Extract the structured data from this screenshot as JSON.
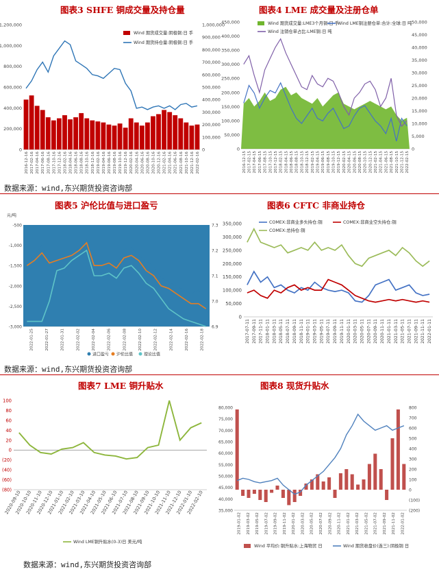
{
  "sources": [
    "数据来源：wind,东兴期货投资咨询部",
    "数据来源：wind,东兴期货投资咨询部",
    "数据来源：wind,东兴期货投资咨询部"
  ],
  "chart_data": [
    {
      "id": "fig3",
      "title": "图表3 SHFE 铜成交量及持仓量",
      "type": "bar",
      "subtype": "bar+line",
      "left_axis": {
        "min": 0,
        "max": 1200000,
        "step": 200000
      },
      "right_axis": {
        "min": 0,
        "max": 1000000,
        "step": 100000
      },
      "x_ticks": [
        "2016-12-16",
        "2017-02-16",
        "2017-04-16",
        "2017-06-16",
        "2017-08-16",
        "2017-10-16",
        "2017-12-16",
        "2018-02-16",
        "2018-04-16",
        "2018-06-16",
        "2018-08-16",
        "2018-10-16",
        "2018-12-16",
        "2019-02-16",
        "2019-04-16",
        "2019-06-16",
        "2019-08-16",
        "2019-10-16",
        "2019-12-16",
        "2020-02-16",
        "2020-04-16",
        "2020-06-16",
        "2020-08-16",
        "2020-10-16",
        "2020-12-16",
        "2021-02-16",
        "2021-04-16",
        "2021-06-16",
        "2021-08-16",
        "2021-10-16",
        "2021-12-16",
        "2022-02-16"
      ],
      "series": [
        {
          "name": "Wind 期货成交量:阴极铜:日 手",
          "kind": "bar",
          "axis": "left",
          "color": "#c00000",
          "values": [
            480000,
            520000,
            420000,
            380000,
            310000,
            280000,
            300000,
            330000,
            290000,
            310000,
            350000,
            300000,
            280000,
            270000,
            260000,
            240000,
            230000,
            250000,
            210000,
            300000,
            260000,
            230000,
            260000,
            320000,
            340000,
            380000,
            360000,
            330000,
            300000,
            260000,
            230000,
            240000
          ]
        },
        {
          "name": "Wind 期货持仓量:阴极铜:日 手",
          "kind": "line",
          "axis": "right",
          "color": "#2e75b6",
          "values": [
            490000,
            550000,
            640000,
            700000,
            620000,
            750000,
            810000,
            870000,
            840000,
            710000,
            680000,
            650000,
            600000,
            590000,
            570000,
            610000,
            650000,
            640000,
            530000,
            470000,
            330000,
            340000,
            320000,
            340000,
            350000,
            330000,
            350000,
            320000,
            360000,
            370000,
            340000,
            350000
          ]
        }
      ]
    },
    {
      "id": "fig4",
      "title": "图表4 LME 成交量及注册仓单",
      "type": "area",
      "subtype": "area+line",
      "left_axis": {
        "min": 0,
        "max": 450000,
        "step": 50000
      },
      "right_axis": {
        "min": 0,
        "max": 50000,
        "step": 5000
      },
      "x_ticks": [
        "2016-12-15",
        "2017-02-15",
        "2017-04-15",
        "2017-06-15",
        "2017-08-15",
        "2017-10-15",
        "2017-12-15",
        "2018-02-15",
        "2018-04-15",
        "2018-06-15",
        "2018-08-15",
        "2018-10-15",
        "2018-12-15",
        "2019-02-15",
        "2019-04-15",
        "2019-06-15",
        "2019-08-15",
        "2019-10-15",
        "2019-12-15",
        "2020-02-15",
        "2020-04-15",
        "2020-06-15",
        "2020-08-15",
        "2020-10-15",
        "2020-12-15",
        "2021-02-15",
        "2021-04-15",
        "2021-06-15",
        "2021-08-15",
        "2021-10-15",
        "2021-12-15",
        "2022-02-15"
      ],
      "series": [
        {
          "name": "Wind 期货成交量:LME3个月铜:日 手",
          "kind": "area",
          "axis": "left",
          "color": "#70b62e",
          "values": [
            160000,
            180000,
            150000,
            170000,
            200000,
            170000,
            180000,
            210000,
            220000,
            190000,
            200000,
            180000,
            170000,
            160000,
            180000,
            150000,
            170000,
            190000,
            200000,
            160000,
            150000,
            140000,
            150000,
            160000,
            170000,
            160000,
            150000,
            140000,
            150000,
            120000,
            100000,
            110000
          ]
        },
        {
          "name": "Wind LME铜注册仓单:合计:全球:日 吨",
          "kind": "line",
          "axis": "right",
          "color": "#4472c4",
          "values": [
            18000,
            25000,
            22000,
            16000,
            20000,
            23000,
            22000,
            26000,
            21000,
            16000,
            12000,
            10000,
            13000,
            16000,
            12000,
            11000,
            14000,
            16000,
            12000,
            8000,
            9000,
            13000,
            16000,
            17000,
            14000,
            11000,
            9000,
            6000,
            12000,
            3000,
            12000,
            9000
          ]
        },
        {
          "name": "Wind 注销仓单占比:LME铜:日 吨",
          "kind": "line",
          "axis": "left",
          "color": "#7f5fa8",
          "values": [
            300000,
            330000,
            260000,
            200000,
            280000,
            320000,
            360000,
            390000,
            340000,
            300000,
            260000,
            220000,
            210000,
            260000,
            230000,
            220000,
            250000,
            240000,
            200000,
            150000,
            120000,
            180000,
            200000,
            230000,
            240000,
            210000,
            150000,
            180000,
            250000,
            120000,
            80000,
            100000
          ]
        }
      ]
    },
    {
      "id": "fig5",
      "title": "图表5 沪伦比值与进口盈亏",
      "type": "area",
      "subtype": "area+lines",
      "left_axis": {
        "min": -3000,
        "max": -500,
        "step": 500
      },
      "right_axis": {
        "min": 6.9,
        "max": 7.3,
        "step": 0.1
      },
      "left_unit": "元/吨",
      "x_ticks": [
        "2022-01-25",
        "2022-01-27",
        "2022-01-31",
        "2022-02-02",
        "2022-02-04",
        "2022-02-06",
        "2022-02-08",
        "2022-02-10",
        "2022-02-12",
        "2022-02-14",
        "2022-02-16",
        "2022-02-18"
      ],
      "legend": [
        "进口盈亏",
        "沪伦比值",
        "理论比值"
      ],
      "series": [
        {
          "name": "进口盈亏",
          "kind": "area",
          "axis": "left",
          "color": "#2f7fb0",
          "values": [
            -1400,
            -1250,
            -1000,
            -1450,
            -1400,
            -1350,
            -1200,
            -1050,
            -850,
            -1500,
            -1450,
            -1400,
            -1500,
            -1100,
            -1050,
            -1250,
            -1400,
            -1500,
            -1800,
            -1900,
            -2000,
            -2100,
            -2200,
            -2100,
            -2300
          ]
        },
        {
          "name": "沪伦比值",
          "kind": "line",
          "axis": "right",
          "color": "#e67e22",
          "values": [
            7.14,
            7.16,
            7.19,
            7.15,
            7.16,
            7.17,
            7.18,
            7.2,
            7.23,
            7.14,
            7.14,
            7.15,
            7.13,
            7.17,
            7.18,
            7.16,
            7.12,
            7.1,
            7.06,
            7.05,
            7.03,
            7.01,
            6.99,
            6.99,
            6.97
          ]
        },
        {
          "name": "理论比值",
          "kind": "line",
          "axis": "right",
          "color": "#5fc4c8",
          "values": [
            6.92,
            6.92,
            6.92,
            7.0,
            7.12,
            7.13,
            7.16,
            7.18,
            7.2,
            7.1,
            7.1,
            7.11,
            7.09,
            7.13,
            7.14,
            7.11,
            7.07,
            7.05,
            7.01,
            6.97,
            6.95,
            6.93,
            6.92,
            6.91,
            6.9
          ]
        }
      ]
    },
    {
      "id": "fig6",
      "title": "图表6 CFTC 非商业持仓",
      "type": "line",
      "y_axis": {
        "min": 0,
        "max": 350000,
        "step": 50000
      },
      "x_ticks": [
        "2017-07-11",
        "2017-09-11",
        "2017-11-11",
        "2018-01-11",
        "2018-03-11",
        "2018-05-11",
        "2018-07-11",
        "2018-09-11",
        "2018-11-11",
        "2019-01-11",
        "2019-03-11",
        "2019-05-11",
        "2019-07-11",
        "2019-09-11",
        "2019-11-11",
        "2020-01-11",
        "2020-03-11",
        "2020-05-11",
        "2020-07-11",
        "2020-09-11",
        "2020-11-11",
        "2021-01-11",
        "2021-03-11",
        "2021-05-11",
        "2021-07-11",
        "2021-09-11",
        "2021-11-11",
        "2022-01-11"
      ],
      "series": [
        {
          "name": "COMEX:非商业多头持仓:铜",
          "color": "#4472c4",
          "values": [
            120000,
            170000,
            130000,
            150000,
            110000,
            120000,
            100000,
            90000,
            110000,
            100000,
            130000,
            110000,
            100000,
            95000,
            100000,
            90000,
            60000,
            55000,
            80000,
            120000,
            130000,
            140000,
            100000,
            110000,
            120000,
            90000,
            80000,
            85000
          ]
        },
        {
          "name": "COMEX:非商业空头持仓:铜",
          "color": "#c00000",
          "values": [
            90000,
            100000,
            80000,
            70000,
            100000,
            90000,
            110000,
            120000,
            100000,
            110000,
            100000,
            100000,
            140000,
            130000,
            120000,
            100000,
            80000,
            70000,
            60000,
            55000,
            60000,
            65000,
            60000,
            65000,
            60000,
            55000,
            60000,
            55000
          ]
        },
        {
          "name": "COMEX:总持仓:铜",
          "color": "#9bbb59",
          "values": [
            280000,
            330000,
            280000,
            270000,
            260000,
            270000,
            240000,
            250000,
            260000,
            250000,
            280000,
            250000,
            260000,
            250000,
            270000,
            230000,
            200000,
            190000,
            220000,
            230000,
            240000,
            250000,
            230000,
            260000,
            240000,
            210000,
            190000,
            210000
          ]
        }
      ]
    },
    {
      "id": "fig7",
      "title": "图表7 LME 铜升贴水",
      "type": "line",
      "y_axis": {
        "min": -80,
        "max": 100,
        "step": 20
      },
      "y_tick_labels": [
        "(80)",
        "(60)",
        "(40)",
        "(20)",
        "0",
        "20",
        "40",
        "60",
        "80",
        "100"
      ],
      "x_ticks": [
        "2020-09-10",
        "2020-10-10",
        "2020-11-10",
        "2020-12-10",
        "2021-01-10",
        "2021-02-10",
        "2021-03-10",
        "2021-04-10",
        "2021-05-10",
        "2021-06-10",
        "2021-07-10",
        "2021-08-10",
        "2021-09-10",
        "2021-10-10",
        "2021-11-10",
        "2021-12-10",
        "2022-01-10",
        "2022-02-10"
      ],
      "series": [
        {
          "name": "Wind LME铜升贴水(0-3)日 美元/吨",
          "color": "#8db63c",
          "values": [
            35,
            10,
            -5,
            -8,
            2,
            5,
            15,
            -5,
            -10,
            -12,
            -18,
            -15,
            5,
            10,
            100,
            20,
            45,
            55
          ]
        }
      ]
    },
    {
      "id": "fig8",
      "title": "图表8 现货升贴水",
      "type": "bar",
      "subtype": "bar+line",
      "left_axis": {
        "min": 35000,
        "max": 80000,
        "step": 5000
      },
      "right_axis": {
        "min": -200,
        "max": 800,
        "step": 100
      },
      "right_tick_labels": [
        "(200)",
        "(100)",
        "0",
        "100",
        "200",
        "300",
        "400",
        "500",
        "600",
        "700",
        "800"
      ],
      "x_ticks": [
        "2019-01-02",
        "2019-03-02",
        "2019-05-02",
        "2019-07-02",
        "2019-09-02",
        "2019-11-02",
        "2020-01-02",
        "2020-03-02",
        "2020-05-02",
        "2020-07-02",
        "2020-09-02",
        "2020-11-02",
        "2021-01-02",
        "2021-03-02",
        "2021-05-02",
        "2021-07-02",
        "2021-09-02",
        "2021-11-02",
        "2022-01-02"
      ],
      "series": [
        {
          "name": "Wind 平均价:铜升贴水:上海物贸 日",
          "kind": "bar",
          "axis": "right",
          "color": "#c0504d",
          "values": [
            780,
            -60,
            -80,
            -40,
            -100,
            -120,
            -30,
            40,
            -80,
            -150,
            -120,
            -60,
            60,
            100,
            150,
            80,
            120,
            -80,
            160,
            200,
            150,
            50,
            100,
            250,
            350,
            200,
            -100,
            500,
            780,
            250
          ]
        },
        {
          "name": "Wind 期货收盘价(连三):阴极铜 日",
          "kind": "line",
          "axis": "left",
          "color": "#4f81bd",
          "values": [
            48000,
            49000,
            48500,
            47500,
            47000,
            47500,
            48000,
            49000,
            46000,
            44000,
            42000,
            43000,
            46000,
            48000,
            50000,
            52000,
            55000,
            58000,
            62000,
            68000,
            72000,
            77000,
            74000,
            72000,
            70000,
            71000,
            72000,
            70000,
            71000,
            72000
          ]
        }
      ]
    }
  ]
}
